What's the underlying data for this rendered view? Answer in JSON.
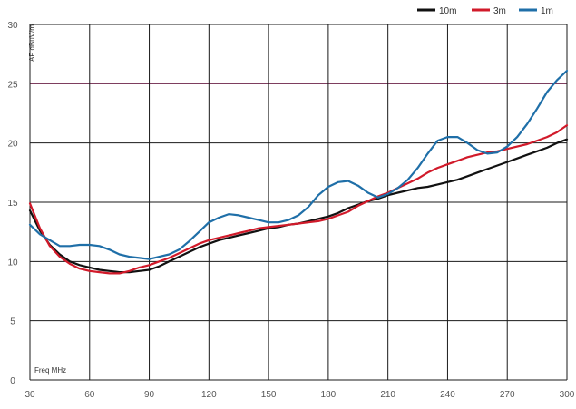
{
  "chart_data": {
    "type": "line",
    "title": "",
    "ylabel": "AF dBuV/m",
    "xlabel": "Freq MHz",
    "xlim": [
      30,
      300
    ],
    "ylim": [
      0,
      30
    ],
    "x_ticks": [
      30,
      60,
      90,
      120,
      150,
      180,
      210,
      240,
      270,
      300
    ],
    "y_ticks": [
      0,
      5,
      10,
      15,
      20,
      25,
      30
    ],
    "x_tick_labels": [
      "30",
      "60",
      "90",
      "120",
      "150",
      "180",
      "210",
      "240",
      "270",
      "300"
    ],
    "y_tick_labels": [
      "0",
      "5",
      "10",
      "15",
      "20",
      "25",
      "30"
    ],
    "grid": true,
    "legend_position": "top-right",
    "series": [
      {
        "name": "10m",
        "color": "#111111",
        "x": [
          30,
          35,
          40,
          45,
          50,
          55,
          60,
          65,
          70,
          75,
          80,
          85,
          90,
          95,
          100,
          105,
          110,
          115,
          120,
          125,
          130,
          135,
          140,
          145,
          150,
          155,
          160,
          165,
          170,
          175,
          180,
          185,
          190,
          195,
          200,
          205,
          210,
          215,
          220,
          225,
          230,
          235,
          240,
          245,
          250,
          255,
          260,
          265,
          270,
          275,
          280,
          285,
          290,
          295,
          300
        ],
        "y": [
          14.3,
          12.6,
          11.4,
          10.6,
          10.0,
          9.7,
          9.5,
          9.3,
          9.2,
          9.1,
          9.1,
          9.2,
          9.3,
          9.6,
          10.0,
          10.4,
          10.8,
          11.2,
          11.5,
          11.8,
          12.0,
          12.2,
          12.4,
          12.6,
          12.8,
          12.9,
          13.1,
          13.2,
          13.4,
          13.6,
          13.8,
          14.1,
          14.5,
          14.8,
          15.1,
          15.3,
          15.6,
          15.8,
          16.0,
          16.2,
          16.3,
          16.5,
          16.7,
          16.9,
          17.2,
          17.5,
          17.8,
          18.1,
          18.4,
          18.7,
          19.0,
          19.3,
          19.6,
          20.0,
          20.3
        ]
      },
      {
        "name": "3m",
        "color": "#d11a2a",
        "x": [
          30,
          35,
          40,
          45,
          50,
          55,
          60,
          65,
          70,
          75,
          80,
          85,
          90,
          95,
          100,
          105,
          110,
          115,
          120,
          125,
          130,
          135,
          140,
          145,
          150,
          155,
          160,
          165,
          170,
          175,
          180,
          185,
          190,
          195,
          200,
          205,
          210,
          215,
          220,
          225,
          230,
          235,
          240,
          245,
          250,
          255,
          260,
          265,
          270,
          275,
          280,
          285,
          290,
          295,
          300
        ],
        "y": [
          14.9,
          12.8,
          11.3,
          10.4,
          9.8,
          9.4,
          9.2,
          9.1,
          9.0,
          9.0,
          9.2,
          9.5,
          9.7,
          10.0,
          10.3,
          10.7,
          11.1,
          11.5,
          11.8,
          12.0,
          12.2,
          12.4,
          12.6,
          12.8,
          12.9,
          13.0,
          13.1,
          13.2,
          13.3,
          13.4,
          13.6,
          13.9,
          14.2,
          14.7,
          15.1,
          15.5,
          15.8,
          16.2,
          16.6,
          17.0,
          17.5,
          17.9,
          18.2,
          18.5,
          18.8,
          19.0,
          19.2,
          19.3,
          19.5,
          19.7,
          19.9,
          20.2,
          20.5,
          20.9,
          21.5
        ]
      },
      {
        "name": "1m",
        "color": "#1f6fa8",
        "x": [
          30,
          35,
          40,
          45,
          50,
          55,
          60,
          65,
          70,
          75,
          80,
          85,
          90,
          95,
          100,
          105,
          110,
          115,
          120,
          125,
          130,
          135,
          140,
          145,
          150,
          155,
          160,
          165,
          170,
          175,
          180,
          185,
          190,
          195,
          200,
          205,
          210,
          215,
          220,
          225,
          230,
          235,
          240,
          245,
          250,
          255,
          260,
          265,
          270,
          275,
          280,
          285,
          290,
          295,
          300
        ],
        "y": [
          13.1,
          12.3,
          11.8,
          11.3,
          11.3,
          11.4,
          11.4,
          11.3,
          11.0,
          10.6,
          10.4,
          10.3,
          10.2,
          10.4,
          10.6,
          11.0,
          11.7,
          12.5,
          13.3,
          13.7,
          14.0,
          13.9,
          13.7,
          13.5,
          13.3,
          13.3,
          13.5,
          13.9,
          14.6,
          15.6,
          16.3,
          16.7,
          16.8,
          16.4,
          15.8,
          15.4,
          15.7,
          16.2,
          16.9,
          17.9,
          19.1,
          20.2,
          20.5,
          20.5,
          20.0,
          19.4,
          19.1,
          19.2,
          19.7,
          20.5,
          21.6,
          22.9,
          24.3,
          25.3,
          26.1
        ]
      }
    ]
  }
}
